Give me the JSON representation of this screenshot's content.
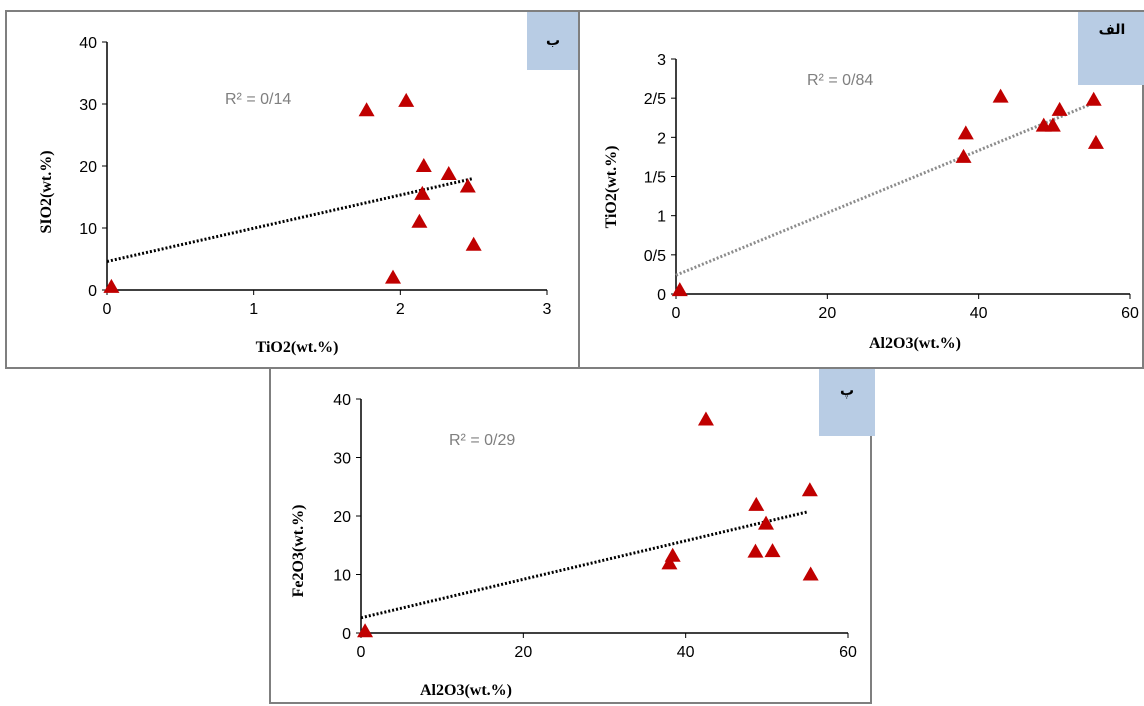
{
  "colors": {
    "marker": "#c00000",
    "trend_dark": "#000000",
    "trend_gray": "#8c8c8c",
    "r2_text": "#7f7f7f",
    "badge": "#b8cce4",
    "border": "#7f7f7f"
  },
  "chart_data": [
    {
      "id": "b",
      "type": "scatter",
      "panel_label": "ب",
      "xlabel": "TiO2(wt.%)",
      "ylabel": "SIO2(wt.%)",
      "xlim": [
        0,
        3
      ],
      "ylim": [
        0,
        40
      ],
      "xticks": [
        0,
        1,
        2,
        3
      ],
      "yticks": [
        0,
        10,
        20,
        30,
        40
      ],
      "x_tick_labels": [
        "0",
        "1",
        "2",
        "3"
      ],
      "y_tick_labels": [
        "0",
        "10",
        "20",
        "30",
        "40"
      ],
      "r2_label": "R² = 0/14",
      "marker": "triangle",
      "points": [
        [
          0.03,
          0.5
        ],
        [
          1.77,
          29.0
        ],
        [
          1.95,
          2.0
        ],
        [
          2.04,
          30.5
        ],
        [
          2.13,
          11.0
        ],
        [
          2.15,
          15.5
        ],
        [
          2.16,
          20.0
        ],
        [
          2.33,
          18.7
        ],
        [
          2.46,
          16.7
        ],
        [
          2.5,
          7.3
        ]
      ],
      "trendline": {
        "from": [
          0.0,
          4.6
        ],
        "to": [
          2.5,
          18.0
        ],
        "style": "dark"
      }
    },
    {
      "id": "alef",
      "type": "scatter",
      "panel_label": "الف",
      "xlabel": "Al2O3(wt.%)",
      "ylabel": "TiO2(wt.%)",
      "xlim": [
        0,
        60
      ],
      "ylim": [
        0,
        3
      ],
      "xticks": [
        0,
        20,
        40,
        60
      ],
      "yticks": [
        0,
        0.5,
        1,
        1.5,
        2,
        2.5,
        3
      ],
      "x_tick_labels": [
        "0",
        "20",
        "40",
        "60"
      ],
      "y_tick_labels": [
        "0",
        "0/5",
        "1",
        "1/5",
        "2",
        "2/5",
        "3"
      ],
      "r2_label": "R² = 0/84",
      "marker": "triangle",
      "points": [
        [
          0.5,
          0.05
        ],
        [
          38.0,
          1.75
        ],
        [
          38.3,
          2.05
        ],
        [
          42.9,
          2.52
        ],
        [
          48.6,
          2.15
        ],
        [
          49.8,
          2.15
        ],
        [
          50.7,
          2.35
        ],
        [
          55.2,
          2.48
        ],
        [
          55.5,
          1.93
        ]
      ],
      "trendline": {
        "from": [
          0.0,
          0.24
        ],
        "to": [
          55.5,
          2.45
        ],
        "style": "gray"
      }
    },
    {
      "id": "pe",
      "type": "scatter",
      "panel_label": "پ",
      "xlabel": "Al2O3(wt.%)",
      "ylabel": "Fe2O3(wt.%)",
      "xlim": [
        0,
        60
      ],
      "ylim": [
        0,
        40
      ],
      "xticks": [
        0,
        20,
        40,
        60
      ],
      "yticks": [
        0,
        10,
        20,
        30,
        40
      ],
      "x_tick_labels": [
        "0",
        "20",
        "40",
        "60"
      ],
      "y_tick_labels": [
        "0",
        "10",
        "20",
        "30",
        "40"
      ],
      "r2_label": "R² = 0/29",
      "marker": "triangle",
      "points": [
        [
          0.5,
          0.3
        ],
        [
          38.0,
          11.9
        ],
        [
          38.4,
          13.2
        ],
        [
          42.5,
          36.5
        ],
        [
          48.6,
          13.9
        ],
        [
          48.7,
          21.9
        ],
        [
          49.9,
          18.7
        ],
        [
          50.7,
          14.0
        ],
        [
          55.3,
          24.4
        ],
        [
          55.4,
          10.0
        ]
      ],
      "trendline": {
        "from": [
          0.0,
          2.6
        ],
        "to": [
          55.0,
          20.7
        ],
        "style": "dark"
      }
    }
  ]
}
